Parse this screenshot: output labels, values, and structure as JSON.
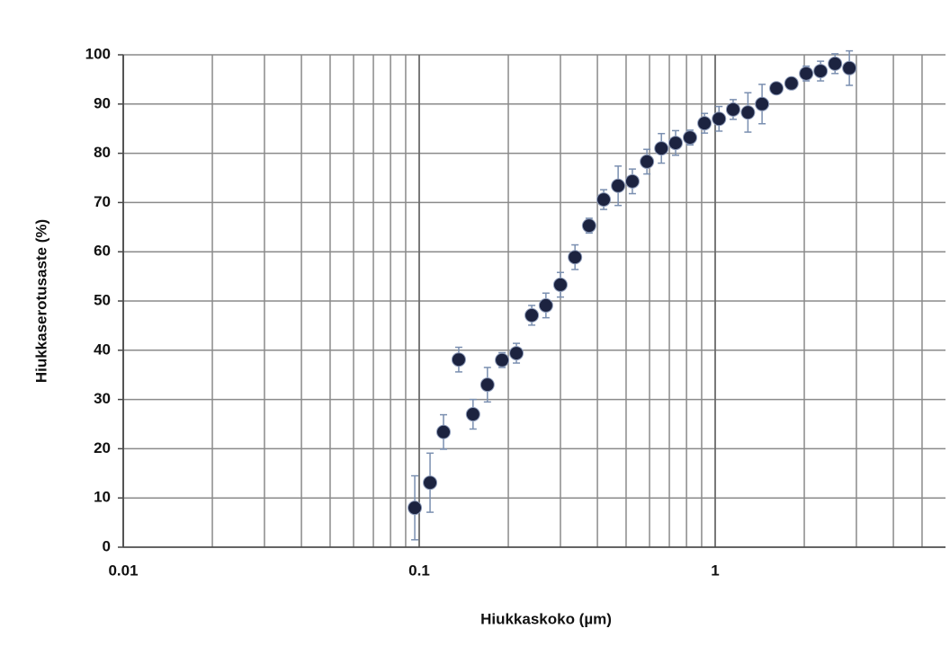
{
  "chart_data": {
    "type": "scatter",
    "x_label": "Hiukkaskoko (µm)",
    "y_label": "Hiukkaserotusaste (%)",
    "x": [
      0.0966,
      0.1088,
      0.1208,
      0.136,
      0.152,
      0.17,
      0.1905,
      0.213,
      0.24,
      0.268,
      0.3,
      0.336,
      0.375,
      0.42,
      0.47,
      0.525,
      0.588,
      0.658,
      0.735,
      0.822,
      0.92,
      1.03,
      1.15,
      1.29,
      1.44,
      1.61,
      1.81,
      2.03,
      2.27,
      2.54,
      2.84
    ],
    "values": [
      8,
      13.1,
      23.4,
      38.1,
      27,
      33,
      38,
      39.4,
      47.1,
      49.1,
      53.3,
      58.9,
      65.3,
      70.6,
      73.4,
      74.3,
      78.3,
      81,
      82.1,
      83.2,
      86.1,
      87,
      88.9,
      88.3,
      90,
      93.2,
      94.2,
      96.2,
      96.7,
      98.2,
      97.3
    ],
    "errors": [
      6.5,
      6,
      3.5,
      2.5,
      3,
      3.5,
      1.5,
      2,
      2,
      2.5,
      2.5,
      2.5,
      1.5,
      2,
      4,
      2.5,
      2.5,
      3,
      2.5,
      1.5,
      2,
      2.5,
      2,
      4,
      4,
      1,
      1,
      1.5,
      2,
      2,
      3.5
    ],
    "color": "#1c2340",
    "error_color": "#7a8fb0",
    "xlim": [
      0.01,
      6
    ],
    "xticks": [
      0.01,
      0.1,
      1
    ],
    "xscale": "log",
    "ylim": [
      0,
      100
    ],
    "yticks": [
      0,
      10,
      20,
      30,
      40,
      50,
      60,
      70,
      80,
      90,
      100
    ],
    "grid": true
  }
}
